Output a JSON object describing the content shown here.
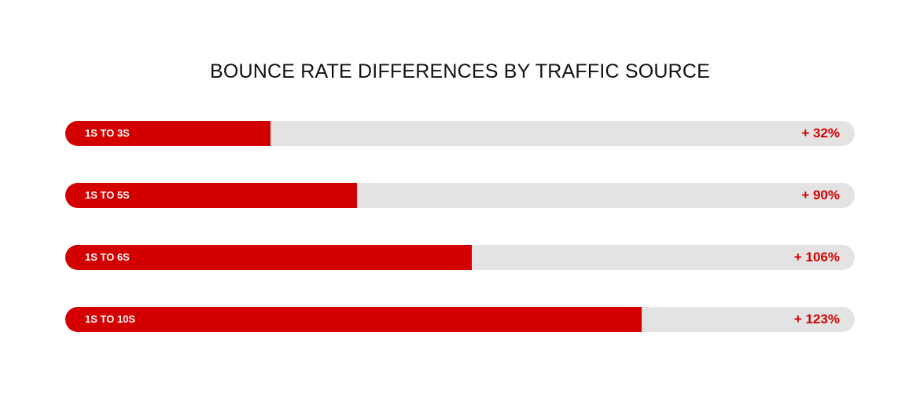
{
  "colors": {
    "fill": "#d40000",
    "track": "#e3e3e3",
    "value_text": "#d40000",
    "label_text": "#ffffff",
    "title_text": "#111111"
  },
  "chart_data": {
    "type": "bar",
    "orientation": "horizontal",
    "title": "BOUNCE RATE DIFFERENCES BY TRAFFIC SOURCE",
    "categories": [
      "1S TO 3S",
      "1S TO 5S",
      "1S TO 6S",
      "1S TO 10S"
    ],
    "values": [
      32,
      90,
      106,
      123
    ],
    "value_labels": [
      "+ 32%",
      "+ 90%",
      "+ 106%",
      "+ 123%"
    ],
    "fill_fraction": [
      0.26,
      0.37,
      0.515,
      0.73
    ],
    "grid": false,
    "legend": "none"
  }
}
